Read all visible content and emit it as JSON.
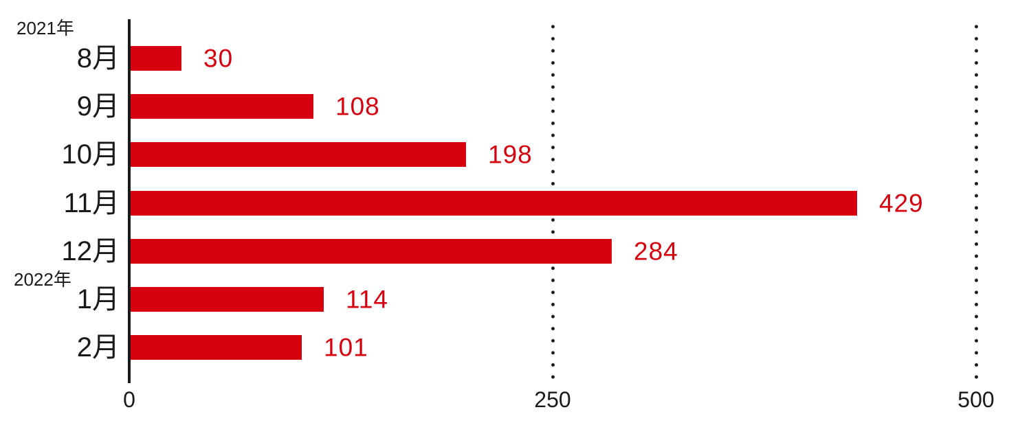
{
  "chart_data": {
    "type": "bar",
    "orientation": "horizontal",
    "title": "",
    "rows": [
      {
        "year": "2021年",
        "month": "8月",
        "value": 30
      },
      {
        "year": "",
        "month": "9月",
        "value": 108
      },
      {
        "year": "",
        "month": "10月",
        "value": 198
      },
      {
        "year": "",
        "month": "11月",
        "value": 429
      },
      {
        "year": "",
        "month": "12月",
        "value": 284
      },
      {
        "year": "2022年",
        "month": "1月",
        "value": 114
      },
      {
        "year": "",
        "month": "2月",
        "value": 101
      }
    ],
    "x_axis": {
      "min": 0,
      "max": 500,
      "ticks": [
        0,
        250,
        500
      ],
      "tick_labels": [
        "0",
        "250",
        "500"
      ],
      "gridlines": [
        250,
        500
      ],
      "gridline_style": "dotted"
    },
    "colors": {
      "bar": "#d7000f",
      "value_label": "#d7000f",
      "axis": "#1a1a1a",
      "text": "#1a1a1a",
      "background": "#ffffff"
    },
    "legend": null
  }
}
